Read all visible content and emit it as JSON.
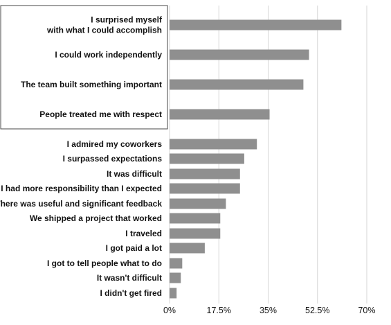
{
  "chart_data": {
    "type": "bar",
    "orientation": "horizontal",
    "title": "",
    "xlabel": "",
    "ylabel": "",
    "xlim": [
      0,
      70
    ],
    "grid": true,
    "bar_color": "#8f8f8f",
    "highlight_box_color": "#444444",
    "highlighted_group": "top 4 categories are enclosed in a box",
    "x_ticks": [
      "0%",
      "17.5%",
      "35%",
      "52.5%",
      "70%"
    ],
    "x_tick_values": [
      0,
      17.5,
      35,
      52.5,
      70
    ],
    "categories": [
      [
        "I surprised myself",
        "with what I could accomplish"
      ],
      [
        "I could work independently"
      ],
      [
        "The team built something important"
      ],
      [
        "People treated me with respect"
      ],
      [
        "I admired my coworkers"
      ],
      [
        "I surpassed expectations"
      ],
      [
        "It was difficult"
      ],
      [
        "I had more responsibility than I expected"
      ],
      [
        "There was useful and significant feedback"
      ],
      [
        "We shipped a project that worked"
      ],
      [
        "I traveled"
      ],
      [
        "I got paid a lot"
      ],
      [
        "I got to tell people what to do"
      ],
      [
        "It wasn't difficult"
      ],
      [
        "I didn't get fired"
      ]
    ],
    "values": [
      61,
      49.5,
      47.5,
      35.5,
      31,
      26.5,
      25,
      25,
      20,
      18,
      18,
      12.5,
      4.5,
      4,
      2.5
    ]
  }
}
